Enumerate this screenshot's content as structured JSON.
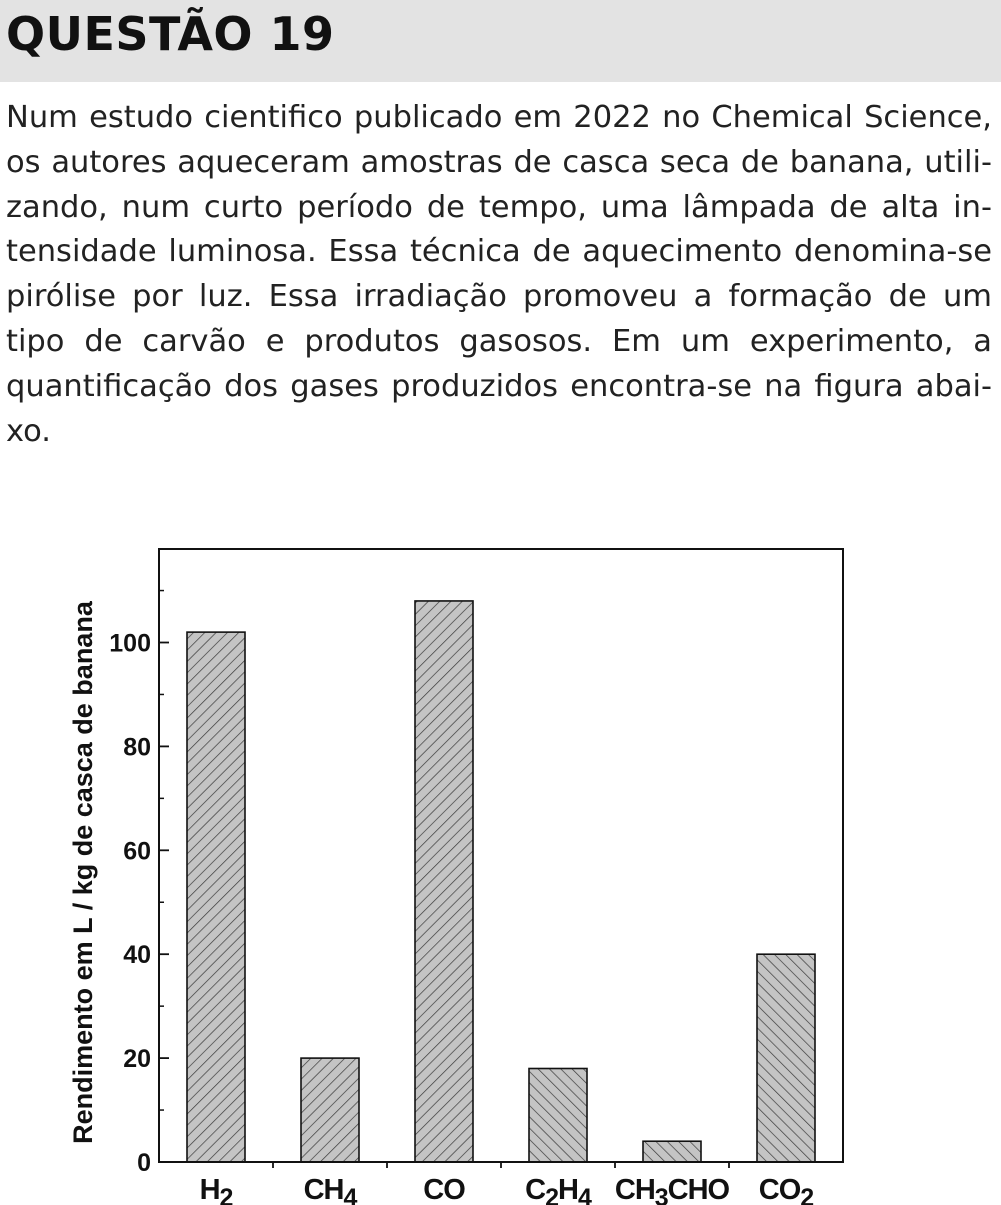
{
  "question": {
    "title": "QUESTÃO 19",
    "paragraph_lines": [
      "Num estudo cientifico publicado em 2022 no Chemical Science,",
      "os autores aqueceram amostras de casca seca de banana, utili-",
      "zando, num curto período de tempo, uma lâmpada de alta in-",
      "tensidade luminosa. Essa técnica de aquecimento denomina-se",
      "pirólise por luz. Essa irradiação promoveu a formação de um",
      "tipo de carvão e produtos gasosos. Em um experimento, a",
      "quantificação dos gases produzidos encontra-se na figura abai-",
      "xo."
    ]
  },
  "chart_data": {
    "type": "bar",
    "categories": [
      {
        "main": "H",
        "sub": "2",
        "tail": ""
      },
      {
        "main": "CH",
        "sub": "4",
        "tail": ""
      },
      {
        "main": "CO",
        "sub": "",
        "tail": ""
      },
      {
        "main": "C",
        "sub": "2",
        "tail": "H",
        "sub2": "4"
      },
      {
        "main": "CH",
        "sub": "3",
        "tail": "CHO"
      },
      {
        "main": "CO",
        "sub": "2",
        "tail": ""
      }
    ],
    "category_names": [
      "H2",
      "CH4",
      "CO",
      "C2H4",
      "CH3CHO",
      "CO2"
    ],
    "values": [
      102,
      20,
      108,
      18,
      4,
      40
    ],
    "hatch": [
      "forward",
      "forward",
      "forward",
      "backward",
      "backward",
      "backward"
    ],
    "ylabel": "Rendimento em L /  kg de casca de banana",
    "xlabel": "",
    "ylim": [
      0,
      118
    ],
    "yticks": [
      "0",
      "20",
      "40",
      "60",
      "80",
      "100"
    ],
    "ytick_values": [
      0,
      20,
      40,
      60,
      80,
      100
    ],
    "colors": {
      "bar_fill": "#c4c4c4",
      "hatch": "#3a3a3a",
      "axis": "#111111"
    }
  }
}
